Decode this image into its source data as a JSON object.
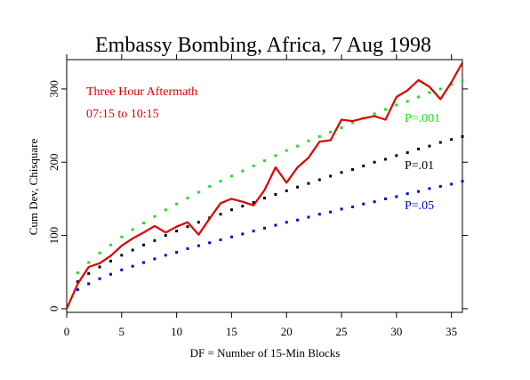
{
  "chart_data": {
    "type": "line",
    "title": "Embassy Bombing, Africa, 7 Aug 1998",
    "xlabel": "DF = Number of 15-Min Blocks",
    "ylabel": "Cum Dev, Chisquare",
    "xlim": [
      0,
      36
    ],
    "ylim": [
      -5,
      340
    ],
    "xticks": [
      0,
      5,
      10,
      15,
      20,
      25,
      30,
      35
    ],
    "yticks": [
      0,
      100,
      200,
      300
    ],
    "annotations": [
      {
        "text": "Three Hour Aftermath",
        "color": "#dd0000"
      },
      {
        "text": "07:15 to 10:15",
        "color": "#dd0000"
      }
    ],
    "series": [
      {
        "kind": "data",
        "color": "#dd0000",
        "x": [
          0,
          1,
          2,
          3,
          4,
          5,
          6,
          7,
          8,
          9,
          10,
          11,
          12,
          13,
          14,
          15,
          16,
          17,
          18,
          19,
          20,
          21,
          22,
          23,
          24,
          25,
          26,
          27,
          28,
          29,
          30,
          31,
          32,
          33,
          34,
          35,
          36
        ],
        "values": [
          0,
          34,
          57,
          62,
          72,
          86,
          96,
          104,
          113,
          104,
          112,
          118,
          101,
          123,
          144,
          150,
          146,
          141,
          162,
          193,
          172,
          193,
          206,
          228,
          230,
          258,
          256,
          260,
          263,
          258,
          289,
          298,
          312,
          303,
          286,
          309,
          336
        ]
      },
      {
        "label": "P=.001",
        "kind": "dotted",
        "color": "#22dd22",
        "x": [
          1,
          2,
          3,
          4,
          5,
          6,
          7,
          8,
          9,
          10,
          11,
          12,
          13,
          14,
          15,
          16,
          17,
          18,
          19,
          20,
          21,
          22,
          23,
          24,
          25,
          26,
          27,
          28,
          29,
          30,
          31,
          32,
          33,
          34,
          35,
          36
        ],
        "values": [
          49,
          63,
          76,
          87,
          98,
          108,
          117,
          126,
          135,
          143,
          151,
          159,
          167,
          174,
          181,
          188,
          195,
          202,
          209,
          216,
          222,
          229,
          235,
          241,
          247,
          254,
          260,
          266,
          272,
          278,
          283,
          289,
          295,
          300,
          306,
          311
        ]
      },
      {
        "label": "P=.01",
        "kind": "dotted",
        "color": "#000000",
        "x": [
          1,
          2,
          3,
          4,
          5,
          6,
          7,
          8,
          9,
          10,
          11,
          12,
          13,
          14,
          15,
          16,
          17,
          18,
          19,
          20,
          21,
          22,
          23,
          24,
          25,
          26,
          27,
          28,
          29,
          30,
          31,
          32,
          33,
          34,
          35,
          36
        ],
        "values": [
          37,
          48,
          57,
          65,
          73,
          80,
          87,
          93,
          100,
          106,
          112,
          118,
          124,
          129,
          135,
          140,
          145,
          151,
          156,
          161,
          166,
          171,
          176,
          181,
          186,
          190,
          195,
          200,
          204,
          209,
          213,
          218,
          222,
          227,
          231,
          235
        ]
      },
      {
        "label": "P=.05",
        "kind": "dotted",
        "color": "#0000dd",
        "x": [
          1,
          2,
          3,
          4,
          5,
          6,
          7,
          8,
          9,
          10,
          11,
          12,
          13,
          14,
          15,
          16,
          17,
          18,
          19,
          20,
          21,
          22,
          23,
          24,
          25,
          26,
          27,
          28,
          29,
          30,
          31,
          32,
          33,
          34,
          35,
          36
        ],
        "values": [
          26,
          34,
          41,
          47,
          53,
          58,
          63,
          68,
          73,
          77,
          82,
          86,
          90,
          94,
          98,
          102,
          106,
          110,
          114,
          118,
          121,
          125,
          129,
          132,
          136,
          139,
          143,
          146,
          150,
          153,
          157,
          160,
          164,
          167,
          170,
          174
        ]
      }
    ]
  }
}
